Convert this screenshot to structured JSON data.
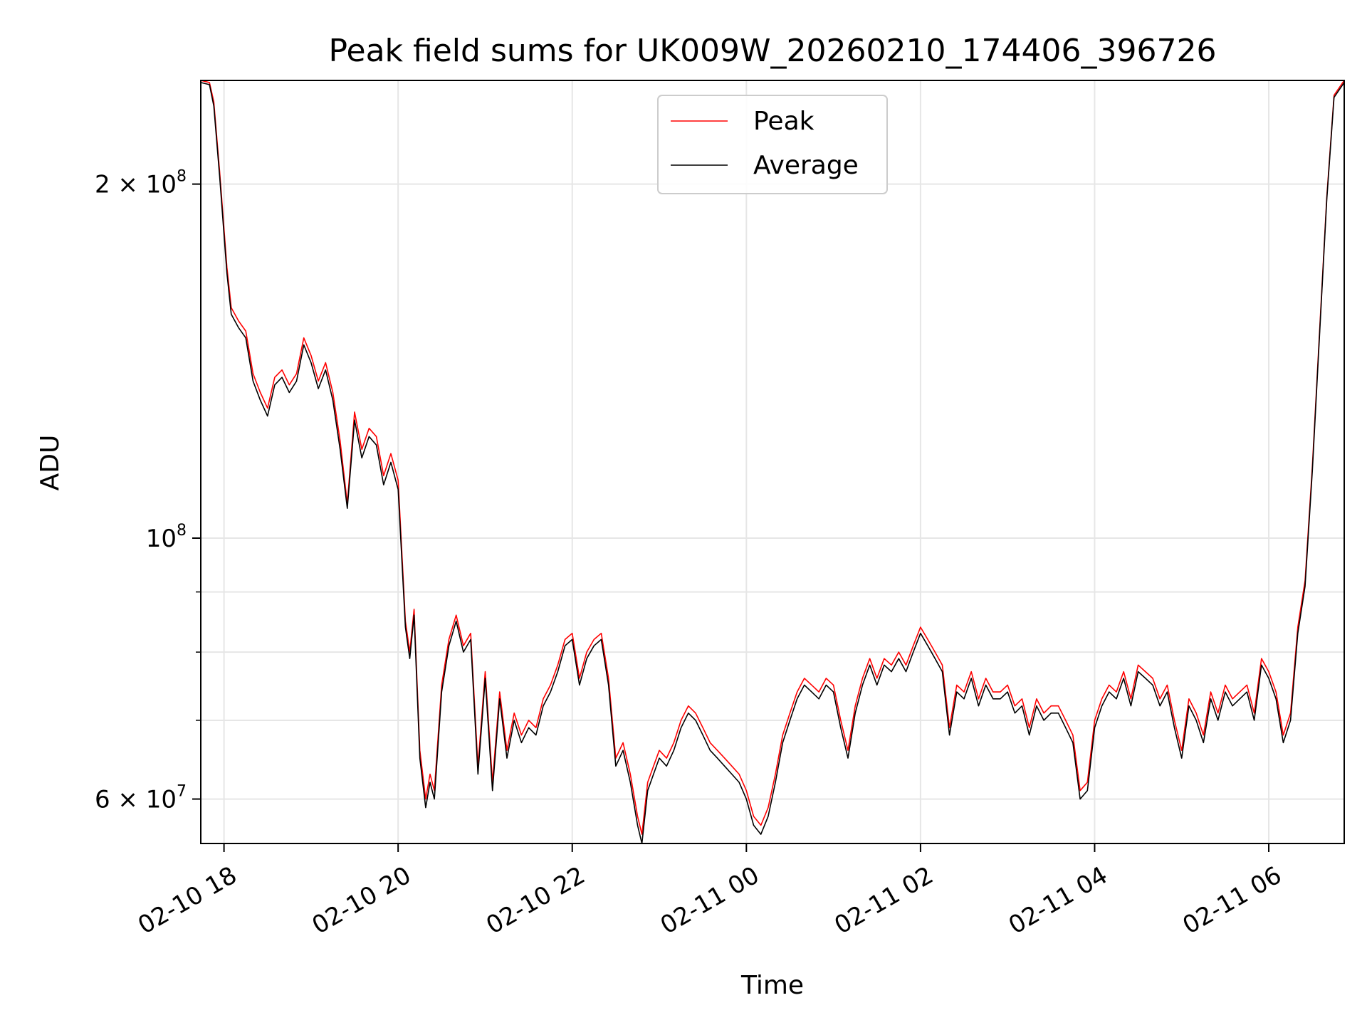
{
  "chart_data": {
    "type": "line",
    "title": "Peak field sums for UK009W_20260210_174406_396726",
    "xlabel": "Time",
    "ylabel": "ADU",
    "y_scale": "log",
    "x_unit": "hours",
    "xlim": [
      "2026-02-10 17:44",
      "2026-02-11 06:52"
    ],
    "ylim": [
      55000000,
      245000000
    ],
    "grid": true,
    "legend_position": "upper-center",
    "x_ticks": [
      {
        "value": "2026-02-10 18:00",
        "label": "02-10 18"
      },
      {
        "value": "2026-02-10 20:00",
        "label": "02-10 20"
      },
      {
        "value": "2026-02-10 22:00",
        "label": "02-10 22"
      },
      {
        "value": "2026-02-11 00:00",
        "label": "02-11 00"
      },
      {
        "value": "2026-02-11 02:00",
        "label": "02-11 02"
      },
      {
        "value": "2026-02-11 04:00",
        "label": "02-11 04"
      },
      {
        "value": "2026-02-11 06:00",
        "label": "02-11 06"
      }
    ],
    "y_ticks_major": [
      {
        "value": 60000000,
        "mantissa": "6",
        "exponent": "7"
      },
      {
        "value": 100000000,
        "mantissa": "",
        "exponent": "8"
      },
      {
        "value": 200000000,
        "mantissa": "2",
        "exponent": "8"
      }
    ],
    "y_ticks_minor": [
      70000000,
      80000000,
      90000000
    ],
    "series": [
      {
        "name": "Peak",
        "color": "#ff0000",
        "x": [
          "2026-02-10 17:44",
          "2026-02-10 17:50",
          "2026-02-10 17:53",
          "2026-02-10 17:57",
          "2026-02-10 18:02",
          "2026-02-10 18:05",
          "2026-02-10 18:10",
          "2026-02-10 18:15",
          "2026-02-10 18:20",
          "2026-02-10 18:25",
          "2026-02-10 18:30",
          "2026-02-10 18:35",
          "2026-02-10 18:40",
          "2026-02-10 18:45",
          "2026-02-10 18:50",
          "2026-02-10 18:55",
          "2026-02-10 19:00",
          "2026-02-10 19:05",
          "2026-02-10 19:10",
          "2026-02-10 19:15",
          "2026-02-10 19:20",
          "2026-02-10 19:25",
          "2026-02-10 19:30",
          "2026-02-10 19:35",
          "2026-02-10 19:40",
          "2026-02-10 19:45",
          "2026-02-10 19:50",
          "2026-02-10 19:55",
          "2026-02-10 20:00",
          "2026-02-10 20:05",
          "2026-02-10 20:08",
          "2026-02-10 20:11",
          "2026-02-10 20:15",
          "2026-02-10 20:19",
          "2026-02-10 20:22",
          "2026-02-10 20:25",
          "2026-02-10 20:30",
          "2026-02-10 20:35",
          "2026-02-10 20:40",
          "2026-02-10 20:45",
          "2026-02-10 20:50",
          "2026-02-10 20:55",
          "2026-02-10 21:00",
          "2026-02-10 21:05",
          "2026-02-10 21:10",
          "2026-02-10 21:15",
          "2026-02-10 21:20",
          "2026-02-10 21:25",
          "2026-02-10 21:30",
          "2026-02-10 21:35",
          "2026-02-10 21:40",
          "2026-02-10 21:45",
          "2026-02-10 21:50",
          "2026-02-10 21:55",
          "2026-02-10 22:00",
          "2026-02-10 22:05",
          "2026-02-10 22:10",
          "2026-02-10 22:15",
          "2026-02-10 22:20",
          "2026-02-10 22:25",
          "2026-02-10 22:30",
          "2026-02-10 22:35",
          "2026-02-10 22:40",
          "2026-02-10 22:45",
          "2026-02-10 22:48",
          "2026-02-10 22:52",
          "2026-02-10 22:56",
          "2026-02-10 23:00",
          "2026-02-10 23:05",
          "2026-02-10 23:10",
          "2026-02-10 23:15",
          "2026-02-10 23:20",
          "2026-02-10 23:25",
          "2026-02-10 23:30",
          "2026-02-10 23:35",
          "2026-02-10 23:40",
          "2026-02-10 23:45",
          "2026-02-10 23:50",
          "2026-02-10 23:55",
          "2026-02-11 00:00",
          "2026-02-11 00:05",
          "2026-02-11 00:10",
          "2026-02-11 00:15",
          "2026-02-11 00:20",
          "2026-02-11 00:25",
          "2026-02-11 00:30",
          "2026-02-11 00:35",
          "2026-02-11 00:40",
          "2026-02-11 00:45",
          "2026-02-11 00:50",
          "2026-02-11 00:55",
          "2026-02-11 01:00",
          "2026-02-11 01:05",
          "2026-02-11 01:10",
          "2026-02-11 01:15",
          "2026-02-11 01:20",
          "2026-02-11 01:25",
          "2026-02-11 01:30",
          "2026-02-11 01:35",
          "2026-02-11 01:40",
          "2026-02-11 01:45",
          "2026-02-11 01:50",
          "2026-02-11 01:55",
          "2026-02-11 02:00",
          "2026-02-11 02:05",
          "2026-02-11 02:10",
          "2026-02-11 02:15",
          "2026-02-11 02:20",
          "2026-02-11 02:25",
          "2026-02-11 02:30",
          "2026-02-11 02:35",
          "2026-02-11 02:40",
          "2026-02-11 02:45",
          "2026-02-11 02:50",
          "2026-02-11 02:55",
          "2026-02-11 03:00",
          "2026-02-11 03:05",
          "2026-02-11 03:10",
          "2026-02-11 03:15",
          "2026-02-11 03:20",
          "2026-02-11 03:25",
          "2026-02-11 03:30",
          "2026-02-11 03:35",
          "2026-02-11 03:40",
          "2026-02-11 03:45",
          "2026-02-11 03:50",
          "2026-02-11 03:55",
          "2026-02-11 04:00",
          "2026-02-11 04:05",
          "2026-02-11 04:10",
          "2026-02-11 04:15",
          "2026-02-11 04:20",
          "2026-02-11 04:25",
          "2026-02-11 04:30",
          "2026-02-11 04:35",
          "2026-02-11 04:40",
          "2026-02-11 04:45",
          "2026-02-11 04:50",
          "2026-02-11 04:55",
          "2026-02-11 05:00",
          "2026-02-11 05:05",
          "2026-02-11 05:10",
          "2026-02-11 05:15",
          "2026-02-11 05:20",
          "2026-02-11 05:25",
          "2026-02-11 05:30",
          "2026-02-11 05:35",
          "2026-02-11 05:40",
          "2026-02-11 05:45",
          "2026-02-11 05:50",
          "2026-02-11 05:55",
          "2026-02-11 06:00",
          "2026-02-11 06:05",
          "2026-02-11 06:10",
          "2026-02-11 06:15",
          "2026-02-11 06:20",
          "2026-02-11 06:25",
          "2026-02-11 06:30",
          "2026-02-11 06:35",
          "2026-02-11 06:40",
          "2026-02-11 06:45",
          "2026-02-11 06:52"
        ],
        "y": [
          245000000,
          244000000,
          235000000,
          205000000,
          170000000,
          157000000,
          153000000,
          150000000,
          138000000,
          133000000,
          129000000,
          137000000,
          139000000,
          135000000,
          138000000,
          148000000,
          143000000,
          136000000,
          141000000,
          133000000,
          121000000,
          107000000,
          128000000,
          119000000,
          124000000,
          122000000,
          113000000,
          118000000,
          112000000,
          85000000,
          80000000,
          87000000,
          66000000,
          60000000,
          63000000,
          61000000,
          75000000,
          82000000,
          86000000,
          81000000,
          83000000,
          64000000,
          77000000,
          62000000,
          74000000,
          66000000,
          71000000,
          68000000,
          70000000,
          69000000,
          73000000,
          75000000,
          78000000,
          82000000,
          83000000,
          76000000,
          80000000,
          82000000,
          83000000,
          76000000,
          65000000,
          67000000,
          63000000,
          58000000,
          56000000,
          62000000,
          64000000,
          66000000,
          65000000,
          67000000,
          70000000,
          72000000,
          71000000,
          69000000,
          67000000,
          66000000,
          65000000,
          64000000,
          63000000,
          61000000,
          58000000,
          57000000,
          59000000,
          63000000,
          68000000,
          71000000,
          74000000,
          76000000,
          75000000,
          74000000,
          76000000,
          75000000,
          70000000,
          66000000,
          72000000,
          76000000,
          79000000,
          76000000,
          79000000,
          78000000,
          80000000,
          78000000,
          81000000,
          84000000,
          82000000,
          80000000,
          78000000,
          69000000,
          75000000,
          74000000,
          77000000,
          73000000,
          76000000,
          74000000,
          74000000,
          75000000,
          72000000,
          73000000,
          69000000,
          73000000,
          71000000,
          72000000,
          72000000,
          70000000,
          68000000,
          61000000,
          62000000,
          70000000,
          73000000,
          75000000,
          74000000,
          77000000,
          73000000,
          78000000,
          77000000,
          76000000,
          73000000,
          75000000,
          70000000,
          66000000,
          73000000,
          71000000,
          68000000,
          74000000,
          71000000,
          75000000,
          73000000,
          74000000,
          75000000,
          71000000,
          79000000,
          77000000,
          74000000,
          68000000,
          71000000,
          84000000,
          92000000,
          115000000,
          150000000,
          195000000,
          238000000,
          245000000
        ]
      },
      {
        "name": "Average",
        "color": "#000000",
        "x": [
          "2026-02-10 17:44",
          "2026-02-10 17:50",
          "2026-02-10 17:53",
          "2026-02-10 17:57",
          "2026-02-10 18:02",
          "2026-02-10 18:05",
          "2026-02-10 18:10",
          "2026-02-10 18:15",
          "2026-02-10 18:20",
          "2026-02-10 18:25",
          "2026-02-10 18:30",
          "2026-02-10 18:35",
          "2026-02-10 18:40",
          "2026-02-10 18:45",
          "2026-02-10 18:50",
          "2026-02-10 18:55",
          "2026-02-10 19:00",
          "2026-02-10 19:05",
          "2026-02-10 19:10",
          "2026-02-10 19:15",
          "2026-02-10 19:20",
          "2026-02-10 19:25",
          "2026-02-10 19:30",
          "2026-02-10 19:35",
          "2026-02-10 19:40",
          "2026-02-10 19:45",
          "2026-02-10 19:50",
          "2026-02-10 19:55",
          "2026-02-10 20:00",
          "2026-02-10 20:05",
          "2026-02-10 20:08",
          "2026-02-10 20:11",
          "2026-02-10 20:15",
          "2026-02-10 20:19",
          "2026-02-10 20:22",
          "2026-02-10 20:25",
          "2026-02-10 20:30",
          "2026-02-10 20:35",
          "2026-02-10 20:40",
          "2026-02-10 20:45",
          "2026-02-10 20:50",
          "2026-02-10 20:55",
          "2026-02-10 21:00",
          "2026-02-10 21:05",
          "2026-02-10 21:10",
          "2026-02-10 21:15",
          "2026-02-10 21:20",
          "2026-02-10 21:25",
          "2026-02-10 21:30",
          "2026-02-10 21:35",
          "2026-02-10 21:40",
          "2026-02-10 21:45",
          "2026-02-10 21:50",
          "2026-02-10 21:55",
          "2026-02-10 22:00",
          "2026-02-10 22:05",
          "2026-02-10 22:10",
          "2026-02-10 22:15",
          "2026-02-10 22:20",
          "2026-02-10 22:25",
          "2026-02-10 22:30",
          "2026-02-10 22:35",
          "2026-02-10 22:40",
          "2026-02-10 22:45",
          "2026-02-10 22:48",
          "2026-02-10 22:52",
          "2026-02-10 22:56",
          "2026-02-10 23:00",
          "2026-02-10 23:05",
          "2026-02-10 23:10",
          "2026-02-10 23:15",
          "2026-02-10 23:20",
          "2026-02-10 23:25",
          "2026-02-10 23:30",
          "2026-02-10 23:35",
          "2026-02-10 23:40",
          "2026-02-10 23:45",
          "2026-02-10 23:50",
          "2026-02-10 23:55",
          "2026-02-11 00:00",
          "2026-02-11 00:05",
          "2026-02-11 00:10",
          "2026-02-11 00:15",
          "2026-02-11 00:20",
          "2026-02-11 00:25",
          "2026-02-11 00:30",
          "2026-02-11 00:35",
          "2026-02-11 00:40",
          "2026-02-11 00:45",
          "2026-02-11 00:50",
          "2026-02-11 00:55",
          "2026-02-11 01:00",
          "2026-02-11 01:05",
          "2026-02-11 01:10",
          "2026-02-11 01:15",
          "2026-02-11 01:20",
          "2026-02-11 01:25",
          "2026-02-11 01:30",
          "2026-02-11 01:35",
          "2026-02-11 01:40",
          "2026-02-11 01:45",
          "2026-02-11 01:50",
          "2026-02-11 01:55",
          "2026-02-11 02:00",
          "2026-02-11 02:05",
          "2026-02-11 02:10",
          "2026-02-11 02:15",
          "2026-02-11 02:20",
          "2026-02-11 02:25",
          "2026-02-11 02:30",
          "2026-02-11 02:35",
          "2026-02-11 02:40",
          "2026-02-11 02:45",
          "2026-02-11 02:50",
          "2026-02-11 02:55",
          "2026-02-11 03:00",
          "2026-02-11 03:05",
          "2026-02-11 03:10",
          "2026-02-11 03:15",
          "2026-02-11 03:20",
          "2026-02-11 03:25",
          "2026-02-11 03:30",
          "2026-02-11 03:35",
          "2026-02-11 03:40",
          "2026-02-11 03:45",
          "2026-02-11 03:50",
          "2026-02-11 03:55",
          "2026-02-11 04:00",
          "2026-02-11 04:05",
          "2026-02-11 04:10",
          "2026-02-11 04:15",
          "2026-02-11 04:20",
          "2026-02-11 04:25",
          "2026-02-11 04:30",
          "2026-02-11 04:35",
          "2026-02-11 04:40",
          "2026-02-11 04:45",
          "2026-02-11 04:50",
          "2026-02-11 04:55",
          "2026-02-11 05:00",
          "2026-02-11 05:05",
          "2026-02-11 05:10",
          "2026-02-11 05:15",
          "2026-02-11 05:20",
          "2026-02-11 05:25",
          "2026-02-11 05:30",
          "2026-02-11 05:35",
          "2026-02-11 05:40",
          "2026-02-11 05:45",
          "2026-02-11 05:50",
          "2026-02-11 05:55",
          "2026-02-11 06:00",
          "2026-02-11 06:05",
          "2026-02-11 06:10",
          "2026-02-11 06:15",
          "2026-02-11 06:20",
          "2026-02-11 06:25",
          "2026-02-11 06:30",
          "2026-02-11 06:35",
          "2026-02-11 06:40",
          "2026-02-11 06:45",
          "2026-02-11 06:52"
        ],
        "y": [
          244000000,
          243000000,
          233000000,
          203000000,
          168000000,
          155000000,
          151000000,
          148000000,
          136000000,
          131000000,
          127000000,
          135000000,
          137000000,
          133000000,
          136000000,
          146000000,
          141000000,
          134000000,
          139000000,
          131000000,
          119000000,
          106000000,
          126000000,
          117000000,
          122000000,
          120000000,
          111000000,
          116000000,
          110000000,
          84000000,
          79000000,
          86000000,
          65000000,
          59000000,
          62000000,
          60000000,
          74000000,
          81000000,
          85000000,
          80000000,
          82000000,
          63000000,
          76000000,
          61000000,
          73000000,
          65000000,
          70000000,
          67000000,
          69000000,
          68000000,
          72000000,
          74000000,
          77000000,
          81000000,
          82000000,
          75000000,
          79000000,
          81000000,
          82000000,
          75000000,
          64000000,
          66000000,
          62000000,
          57000000,
          55000000,
          61000000,
          63000000,
          65000000,
          64000000,
          66000000,
          69000000,
          71000000,
          70000000,
          68000000,
          66000000,
          65000000,
          64000000,
          63000000,
          62000000,
          60000000,
          57000000,
          56000000,
          58000000,
          62000000,
          67000000,
          70000000,
          73000000,
          75000000,
          74000000,
          73000000,
          75000000,
          74000000,
          69000000,
          65000000,
          71000000,
          75000000,
          78000000,
          75000000,
          78000000,
          77000000,
          79000000,
          77000000,
          80000000,
          83000000,
          81000000,
          79000000,
          77000000,
          68000000,
          74000000,
          73000000,
          76000000,
          72000000,
          75000000,
          73000000,
          73000000,
          74000000,
          71000000,
          72000000,
          68000000,
          72000000,
          70000000,
          71000000,
          71000000,
          69000000,
          67000000,
          60000000,
          61000000,
          69000000,
          72000000,
          74000000,
          73000000,
          76000000,
          72000000,
          77000000,
          76000000,
          75000000,
          72000000,
          74000000,
          69000000,
          65000000,
          72000000,
          70000000,
          67000000,
          73000000,
          70000000,
          74000000,
          72000000,
          73000000,
          74000000,
          70000000,
          78000000,
          76000000,
          73000000,
          67000000,
          70000000,
          83000000,
          91000000,
          114000000,
          149000000,
          194000000,
          237000000,
          244000000
        ]
      }
    ]
  }
}
